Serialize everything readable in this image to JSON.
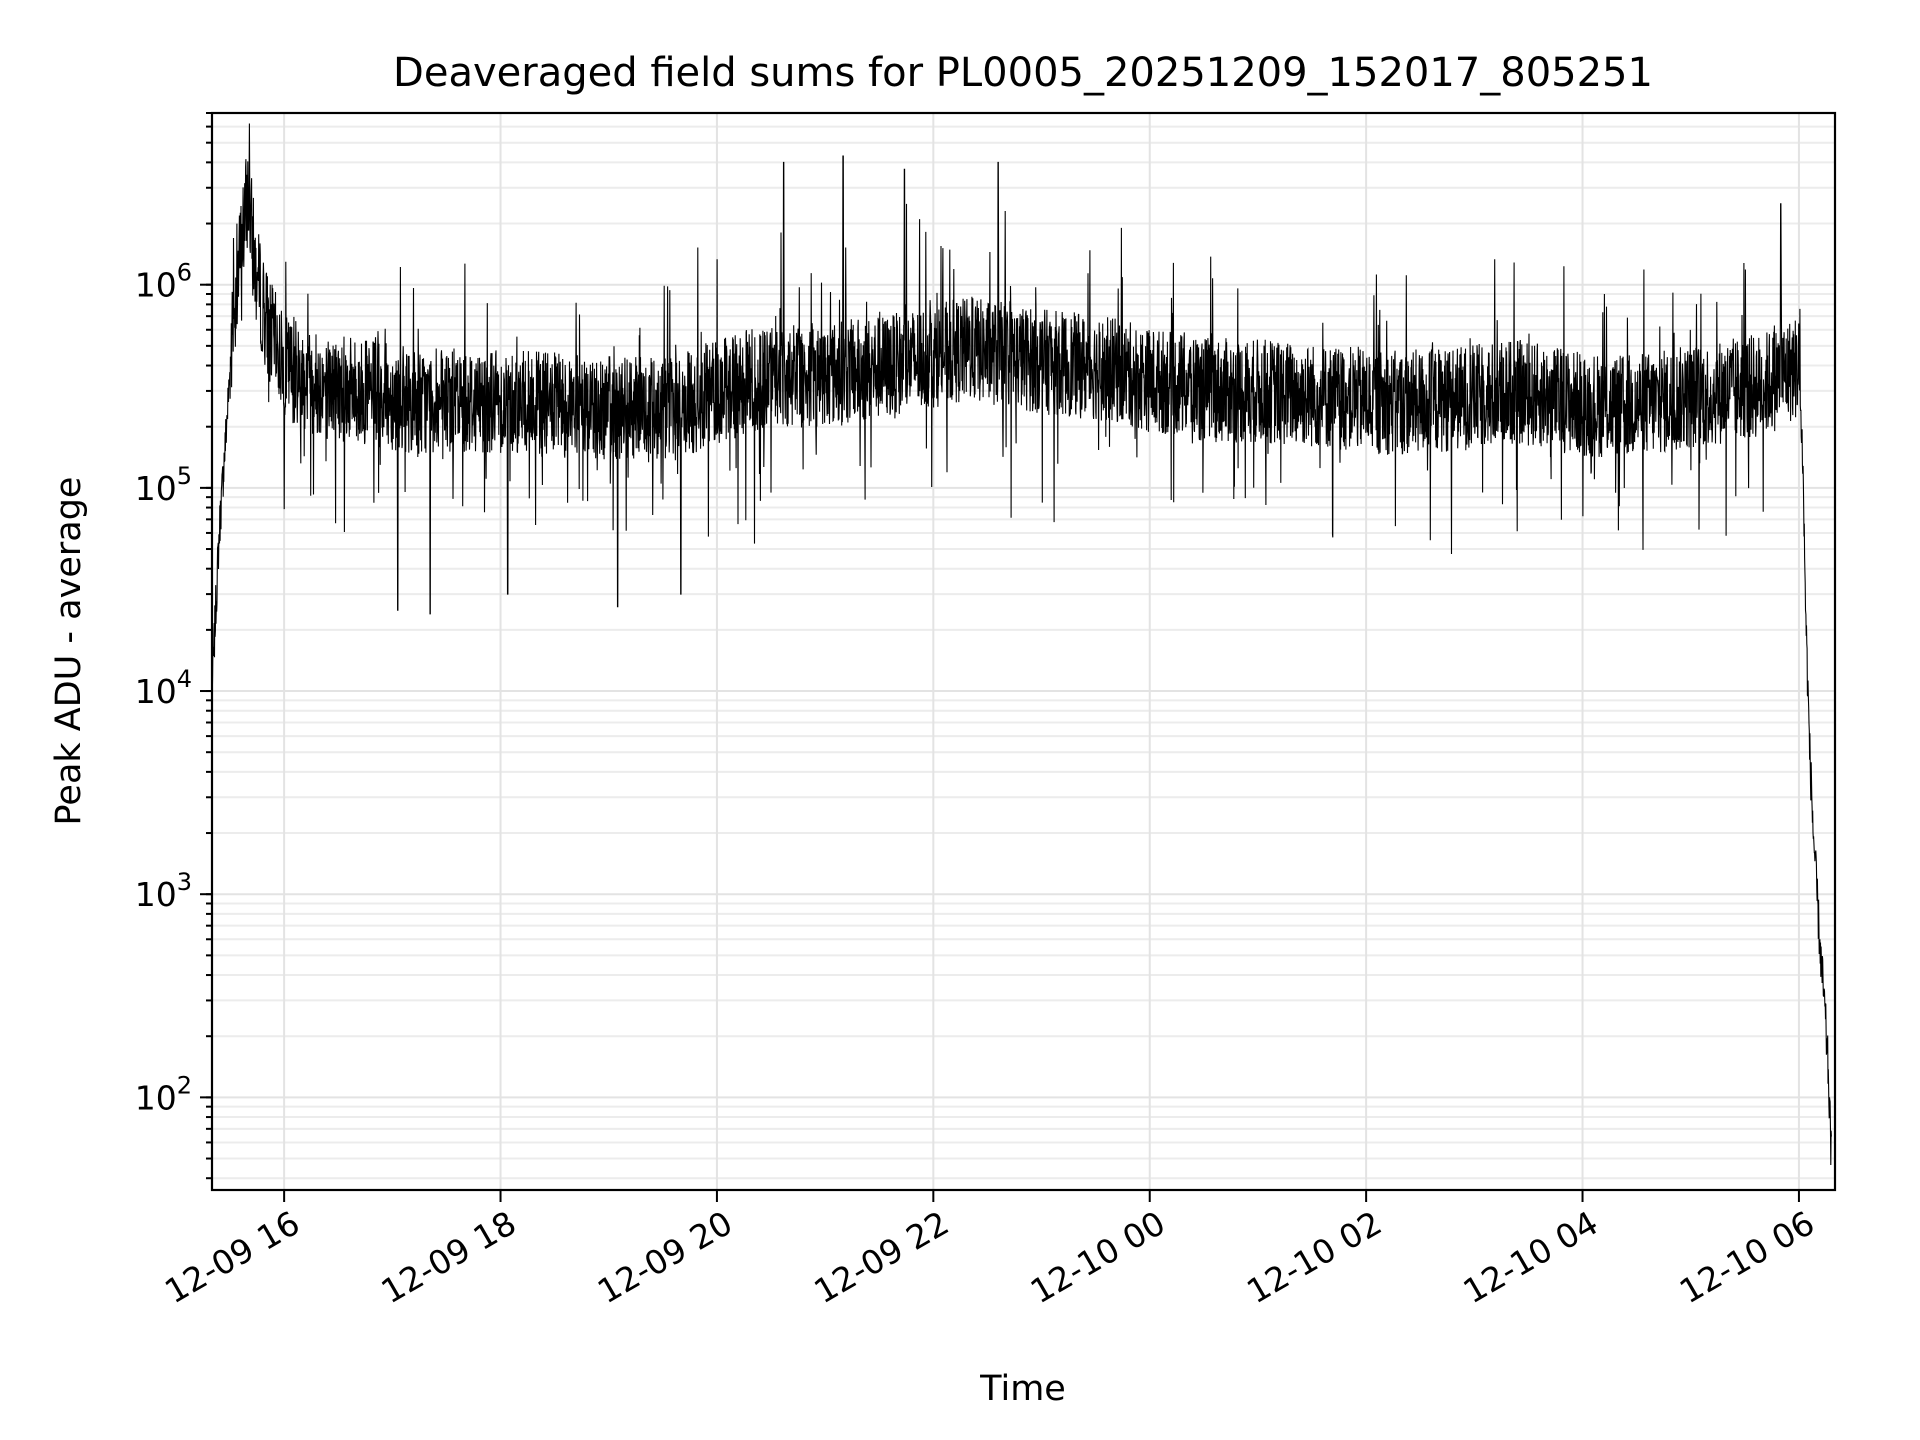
{
  "chart_data": {
    "type": "line",
    "title": "Deaveraged field sums for PL0005_20251209_152017_805251",
    "xlabel": "Time",
    "ylabel": "Peak ADU - average",
    "yscale": "log",
    "ylim": [
      35,
      7000000
    ],
    "xlim": [
      "2025-12-09 15:20",
      "2025-12-10 06:20"
    ],
    "grid": true,
    "line_color": "#000000",
    "x_ticks": [
      {
        "value": "2025-12-09 16:00",
        "label": "12-09 16"
      },
      {
        "value": "2025-12-09 18:00",
        "label": "12-09 18"
      },
      {
        "value": "2025-12-09 20:00",
        "label": "12-09 20"
      },
      {
        "value": "2025-12-09 22:00",
        "label": "12-09 22"
      },
      {
        "value": "2025-12-10 00:00",
        "label": "12-10 00"
      },
      {
        "value": "2025-12-10 02:00",
        "label": "12-10 02"
      },
      {
        "value": "2025-12-10 04:00",
        "label": "12-10 04"
      },
      {
        "value": "2025-12-10 06:00",
        "label": "12-10 06"
      }
    ],
    "y_ticks": [
      {
        "value": 100,
        "base": "10",
        "exp": "2"
      },
      {
        "value": 1000,
        "base": "10",
        "exp": "3"
      },
      {
        "value": 10000,
        "base": "10",
        "exp": "4"
      },
      {
        "value": 100000,
        "base": "10",
        "exp": "5"
      },
      {
        "value": 1000000,
        "base": "10",
        "exp": "6"
      }
    ],
    "series": [
      {
        "x": [
          "2025-12-09 15:20",
          "2025-12-09 15:24",
          "2025-12-09 15:28",
          "2025-12-09 15:32",
          "2025-12-09 15:36",
          "2025-12-09 15:40",
          "2025-12-09 15:44",
          "2025-12-09 15:48",
          "2025-12-09 15:52",
          "2025-12-09 16:00",
          "2025-12-09 16:20",
          "2025-12-09 16:40",
          "2025-12-09 17:00",
          "2025-12-09 17:20",
          "2025-12-09 17:40",
          "2025-12-09 18:00",
          "2025-12-09 18:20",
          "2025-12-09 18:40",
          "2025-12-09 19:00",
          "2025-12-09 19:20",
          "2025-12-09 19:40",
          "2025-12-09 20:00",
          "2025-12-09 20:20",
          "2025-12-09 20:40",
          "2025-12-09 21:00",
          "2025-12-09 21:20",
          "2025-12-09 21:40",
          "2025-12-09 22:00",
          "2025-12-09 22:20",
          "2025-12-09 22:40",
          "2025-12-09 23:00",
          "2025-12-09 23:20",
          "2025-12-09 23:40",
          "2025-12-10 00:00",
          "2025-12-10 00:20",
          "2025-12-10 00:40",
          "2025-12-10 01:00",
          "2025-12-10 01:20",
          "2025-12-10 01:40",
          "2025-12-10 02:00",
          "2025-12-10 02:20",
          "2025-12-10 02:40",
          "2025-12-10 03:00",
          "2025-12-10 03:20",
          "2025-12-10 03:40",
          "2025-12-10 04:00",
          "2025-12-10 04:20",
          "2025-12-10 04:40",
          "2025-12-10 05:00",
          "2025-12-10 05:20",
          "2025-12-10 05:40",
          "2025-12-10 06:00",
          "2025-12-10 06:02",
          "2025-12-10 06:04",
          "2025-12-10 06:06",
          "2025-12-10 06:08",
          "2025-12-10 06:10",
          "2025-12-10 06:12",
          "2025-12-10 06:14",
          "2025-12-10 06:16",
          "2025-12-10 06:18"
        ],
        "y": [
          10000,
          60000,
          200000,
          700000,
          1500000,
          2800000,
          1200000,
          800000,
          600000,
          400000,
          320000,
          300000,
          280000,
          260000,
          270000,
          270000,
          260000,
          250000,
          250000,
          240000,
          250000,
          300000,
          340000,
          350000,
          360000,
          380000,
          400000,
          450000,
          480000,
          450000,
          420000,
          400000,
          380000,
          340000,
          320000,
          300000,
          300000,
          290000,
          280000,
          270000,
          260000,
          270000,
          280000,
          300000,
          280000,
          260000,
          250000,
          260000,
          280000,
          300000,
          320000,
          400000,
          150000,
          20000,
          5000,
          2000,
          1000,
          500,
          300,
          150,
          50
        ],
        "spikes_high": [
          [
            "2025-12-09 20:37",
            4000000
          ],
          [
            "2025-12-09 21:10",
            4300000
          ],
          [
            "2025-12-09 21:44",
            3700000
          ],
          [
            "2025-12-09 22:36",
            4000000
          ],
          [
            "2025-12-10 05:50",
            2500000
          ]
        ],
        "spikes_low": [
          [
            "2025-12-09 17:03",
            25000
          ],
          [
            "2025-12-09 17:21",
            24000
          ],
          [
            "2025-12-09 18:04",
            30000
          ],
          [
            "2025-12-09 19:05",
            26000
          ],
          [
            "2025-12-09 19:40",
            30000
          ]
        ]
      }
    ]
  }
}
